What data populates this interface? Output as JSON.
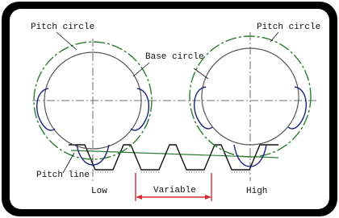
{
  "labels": {
    "pitch_circle_left": "Pitch circle",
    "pitch_circle_right": "Pitch circle",
    "base_circle": "Base circle",
    "pitch_line": "Pitch line",
    "low": "Low",
    "variable": "Variable",
    "high": "High"
  }
}
